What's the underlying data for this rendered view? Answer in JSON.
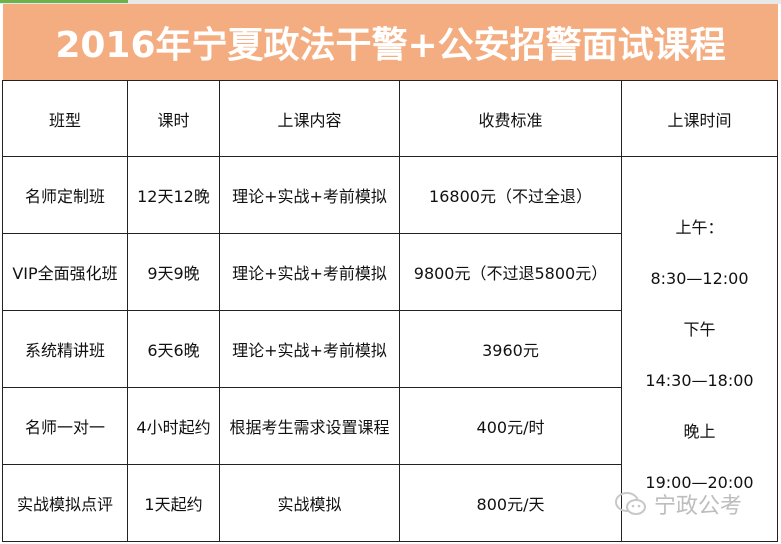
{
  "title": "2016年宁夏政法干警+公安招警面试课程",
  "headers": [
    "班型",
    "课时",
    "上课内容",
    "收费标准",
    "上课时间"
  ],
  "rows": [
    [
      "名师定制班",
      "12天12晚",
      "理论+实战+考前模拟",
      "16800元（不过全退）"
    ],
    [
      "VIP全面强化班",
      "9天9晚",
      "理论+实战+考前模拟",
      "9800元（不过退5800元）"
    ],
    [
      "系统精讲班",
      "6天6晚",
      "理论+实战+考前模拟",
      "3960元"
    ],
    [
      "名师一对一",
      "4小时起约",
      "根据考生需求设置课程",
      "400元/时"
    ],
    [
      "实战模拟点评",
      "1天起约",
      "实战模拟",
      "800元/天"
    ]
  ],
  "schedule": [
    "上午：",
    "8:30—12:00",
    "下午",
    "14:30—18:00",
    "晚上",
    "19:00—20:00"
  ],
  "watermark": {
    "text": "宁政公考",
    "icon": "wechat-icon"
  },
  "colors": {
    "title_bg": "#f4ad80",
    "title_text": "#ffffff",
    "tab_accent": "#6bb24a"
  }
}
